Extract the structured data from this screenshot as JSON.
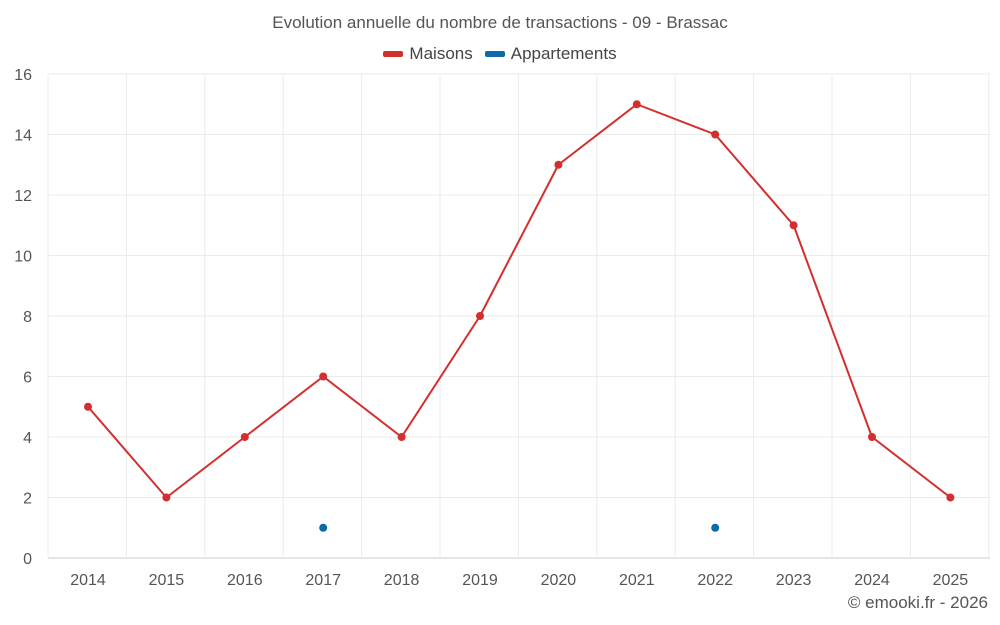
{
  "chart_data": {
    "type": "line",
    "title": "Evolution annuelle du nombre de transactions - 09 - Brassac",
    "categories": [
      "2014",
      "2015",
      "2016",
      "2017",
      "2018",
      "2019",
      "2020",
      "2021",
      "2022",
      "2023",
      "2024",
      "2025"
    ],
    "series": [
      {
        "name": "Maisons",
        "color": "#d32f2f",
        "values": [
          5,
          2,
          4,
          6,
          4,
          8,
          13,
          15,
          14,
          11,
          4,
          2
        ]
      },
      {
        "name": "Appartements",
        "color": "#0d6aa6",
        "values": [
          null,
          null,
          null,
          1,
          null,
          null,
          null,
          null,
          1,
          null,
          null,
          null
        ]
      }
    ],
    "ylim": [
      0,
      16
    ],
    "yticks": [
      0,
      2,
      4,
      6,
      8,
      10,
      12,
      14,
      16
    ],
    "xlabel": "",
    "ylabel": "",
    "grid": true,
    "legend": "top-center"
  },
  "credit": "© emooki.fr - 2026"
}
